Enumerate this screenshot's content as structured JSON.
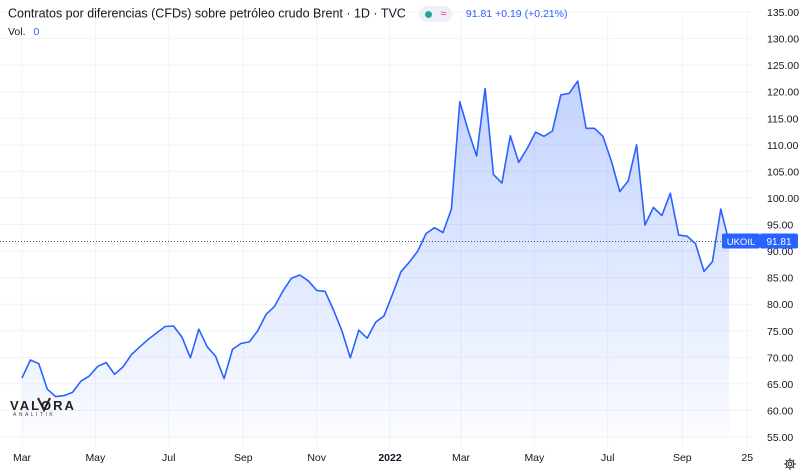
{
  "header": {
    "title": "Contratos por diferencias (CFDs) sobre petróleo crudo Brent · 1D · TVC",
    "status_dot_color": "#26a69a",
    "approx_symbol": "≈",
    "last": "91.81",
    "change": "+0.19",
    "change_pct": "(+0.21%)",
    "vol_label": "Vol.",
    "vol_value": "0"
  },
  "price_label": {
    "symbol": "UKOIL",
    "value": "91.81"
  },
  "logo": {
    "word": "VALORA",
    "sub": "ANALITIK"
  },
  "colors": {
    "line": "#2962ff",
    "fill": "#2962ff",
    "grid": "#f0f3fa",
    "axis_text": "#131722"
  },
  "icons": {
    "settings": "gear-icon"
  },
  "chart_data": {
    "type": "area",
    "title": "Contratos por diferencias (CFDs) sobre petróleo crudo Brent · 1D · TVC",
    "xlabel": "",
    "ylabel": "",
    "ylim": [
      55,
      135
    ],
    "y_ticks": [
      "135.00",
      "130.00",
      "125.00",
      "120.00",
      "115.00",
      "110.00",
      "105.00",
      "100.00",
      "95.00",
      "90.00",
      "85.00",
      "80.00",
      "75.00",
      "70.00",
      "65.00",
      "60.00",
      "55.00"
    ],
    "x_ticks": [
      "Mar",
      "May",
      "Jul",
      "Sep",
      "Nov",
      "2022",
      "Mar",
      "May",
      "Jul",
      "Sep",
      "25"
    ],
    "last_value": 91.81,
    "series": [
      {
        "points": [
          [
            "2021-03-01",
            66.1
          ],
          [
            "2021-03-08",
            69.5
          ],
          [
            "2021-03-15",
            68.8
          ],
          [
            "2021-03-22",
            64.0
          ],
          [
            "2021-03-29",
            62.6
          ],
          [
            "2021-04-05",
            62.8
          ],
          [
            "2021-04-12",
            63.4
          ],
          [
            "2021-04-19",
            65.5
          ],
          [
            "2021-04-26",
            66.5
          ],
          [
            "2021-05-03",
            68.3
          ],
          [
            "2021-05-10",
            69.0
          ],
          [
            "2021-05-17",
            66.8
          ],
          [
            "2021-05-24",
            68.2
          ],
          [
            "2021-05-31",
            70.5
          ],
          [
            "2021-06-07",
            72.0
          ],
          [
            "2021-06-14",
            73.4
          ],
          [
            "2021-06-21",
            74.6
          ],
          [
            "2021-06-28",
            75.8
          ],
          [
            "2021-07-05",
            75.9
          ],
          [
            "2021-07-12",
            73.8
          ],
          [
            "2021-07-19",
            69.9
          ],
          [
            "2021-07-26",
            75.3
          ],
          [
            "2021-08-02",
            72.0
          ],
          [
            "2021-08-09",
            70.2
          ],
          [
            "2021-08-16",
            66.0
          ],
          [
            "2021-08-23",
            71.5
          ],
          [
            "2021-08-30",
            72.6
          ],
          [
            "2021-09-06",
            72.9
          ],
          [
            "2021-09-13",
            75.0
          ],
          [
            "2021-09-20",
            78.1
          ],
          [
            "2021-09-27",
            79.6
          ],
          [
            "2021-10-04",
            82.5
          ],
          [
            "2021-10-11",
            84.9
          ],
          [
            "2021-10-18",
            85.5
          ],
          [
            "2021-10-25",
            84.4
          ],
          [
            "2021-11-01",
            82.6
          ],
          [
            "2021-11-08",
            82.4
          ],
          [
            "2021-11-15",
            78.9
          ],
          [
            "2021-11-22",
            75.0
          ],
          [
            "2021-11-29",
            69.9
          ],
          [
            "2021-12-06",
            75.1
          ],
          [
            "2021-12-13",
            73.6
          ],
          [
            "2021-12-20",
            76.6
          ],
          [
            "2021-12-27",
            77.8
          ],
          [
            "2022-01-03",
            81.8
          ],
          [
            "2022-01-10",
            86.1
          ],
          [
            "2022-01-17",
            87.9
          ],
          [
            "2022-01-24",
            90.0
          ],
          [
            "2022-01-31",
            93.3
          ],
          [
            "2022-02-07",
            94.4
          ],
          [
            "2022-02-14",
            93.5
          ],
          [
            "2022-02-21",
            97.9
          ],
          [
            "2022-02-28",
            118.1
          ],
          [
            "2022-03-07",
            112.7
          ],
          [
            "2022-03-14",
            107.9
          ],
          [
            "2022-03-21",
            120.6
          ],
          [
            "2022-03-28",
            104.4
          ],
          [
            "2022-04-04",
            102.8
          ],
          [
            "2022-04-11",
            111.7
          ],
          [
            "2022-04-18",
            106.7
          ],
          [
            "2022-04-25",
            109.3
          ],
          [
            "2022-05-02",
            112.4
          ],
          [
            "2022-05-09",
            111.6
          ],
          [
            "2022-05-16",
            112.6
          ],
          [
            "2022-05-23",
            119.4
          ],
          [
            "2022-05-30",
            119.7
          ],
          [
            "2022-06-06",
            122.0
          ],
          [
            "2022-06-13",
            113.1
          ],
          [
            "2022-06-20",
            113.1
          ],
          [
            "2022-06-27",
            111.6
          ],
          [
            "2022-07-04",
            107.0
          ],
          [
            "2022-07-11",
            101.2
          ],
          [
            "2022-07-18",
            103.2
          ],
          [
            "2022-07-25",
            110.0
          ],
          [
            "2022-08-01",
            94.9
          ],
          [
            "2022-08-08",
            98.2
          ],
          [
            "2022-08-15",
            96.7
          ],
          [
            "2022-08-22",
            100.9
          ],
          [
            "2022-08-29",
            93.0
          ],
          [
            "2022-09-05",
            92.8
          ],
          [
            "2022-09-12",
            91.4
          ],
          [
            "2022-09-19",
            86.2
          ],
          [
            "2022-09-26",
            88.0
          ],
          [
            "2022-10-03",
            97.9
          ],
          [
            "2022-10-10",
            91.6
          ]
        ]
      }
    ]
  }
}
